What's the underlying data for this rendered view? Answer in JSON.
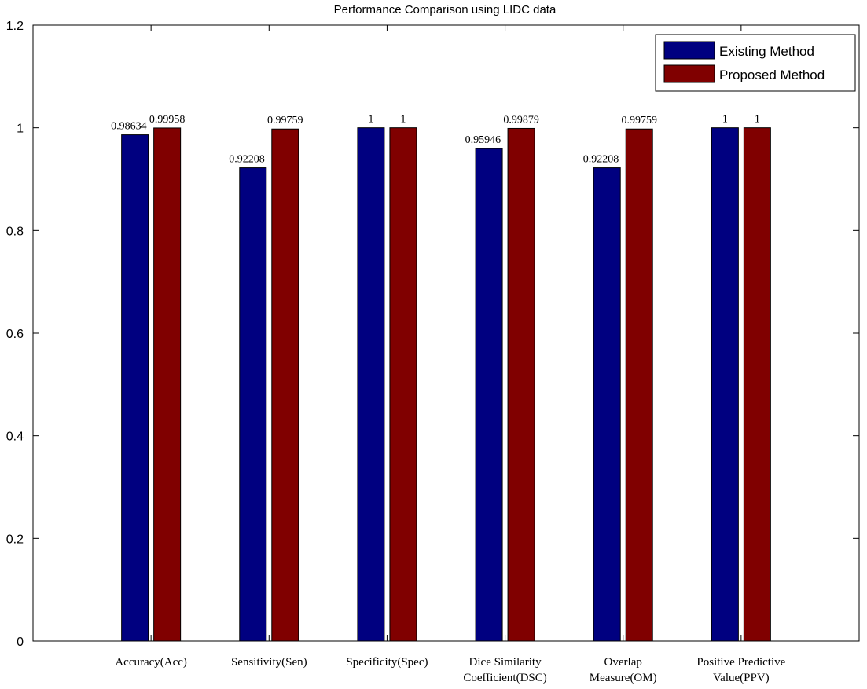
{
  "chart_data": {
    "type": "bar",
    "title": "Performance Comparison using LIDC data",
    "xlabel": "",
    "ylabel": "",
    "ylim": [
      0,
      1.2
    ],
    "yticks": [
      "0",
      "0.2",
      "0.4",
      "0.6",
      "0.8",
      "1",
      "1.2"
    ],
    "categories": [
      [
        "Accuracy(Acc)"
      ],
      [
        "Sensitivity(Sen)"
      ],
      [
        "Specificity(Spec)"
      ],
      [
        "Dice Similarity",
        "Coefficient(DSC)"
      ],
      [
        "Overlap",
        "Measure(OM)"
      ],
      [
        "Positive Predictive",
        "Value(PPV)"
      ]
    ],
    "series": [
      {
        "name": "Existing Method",
        "color": "#000080",
        "values": [
          0.98634,
          0.92208,
          1,
          0.95946,
          0.92208,
          1
        ],
        "labels": [
          "0.98634",
          "0.92208",
          "1",
          "0.95946",
          "0.92208",
          "1"
        ]
      },
      {
        "name": "Proposed Method",
        "color": "#800000",
        "values": [
          0.99958,
          0.99759,
          1,
          0.99879,
          0.99759,
          1
        ],
        "labels": [
          "0.99958",
          "0.99759",
          "1",
          "0.99879",
          "0.99759",
          "1"
        ]
      }
    ],
    "legend": "top-right",
    "grid": false
  }
}
